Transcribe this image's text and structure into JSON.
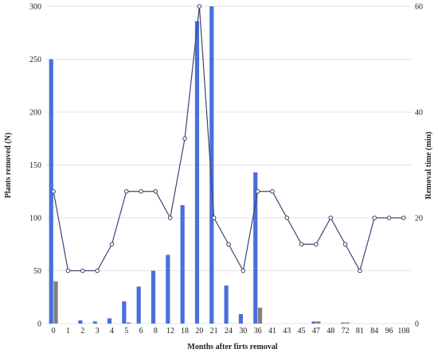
{
  "chart_data": {
    "type": "bar",
    "title": "",
    "xlabel": "Months after firts removal",
    "ylabel": "Plants removed (N)",
    "y2label": "Removal time (min)",
    "ylim": [
      0,
      300
    ],
    "y2lim": [
      0,
      60
    ],
    "yticks": [
      0,
      50,
      100,
      150,
      200,
      250,
      300
    ],
    "y2ticks": [
      0,
      20,
      40,
      60
    ],
    "grid": true,
    "legend": "none",
    "categories": [
      "0",
      "1",
      "2",
      "3",
      "4",
      "5",
      "6",
      "8",
      "12",
      "18",
      "20",
      "21",
      "24",
      "30",
      "36",
      "41",
      "43",
      "45",
      "47",
      "48",
      "72",
      "81",
      "84",
      "96",
      "108"
    ],
    "series": [
      {
        "kind": "bar",
        "axis": "left",
        "color": "#4a6fdc",
        "values": [
          250,
          0,
          3,
          2,
          5,
          21,
          35,
          50,
          65,
          112,
          286,
          300,
          36,
          9,
          143,
          0,
          0,
          0,
          2,
          0,
          1,
          0,
          0,
          0,
          0
        ]
      },
      {
        "kind": "bar",
        "axis": "left",
        "color": "#808080",
        "values": [
          40,
          0,
          0,
          0,
          0,
          1,
          0,
          0,
          0,
          0,
          0,
          0,
          0,
          0,
          15,
          0,
          0,
          0,
          2,
          0,
          1,
          0,
          0,
          0,
          0
        ]
      },
      {
        "kind": "line",
        "axis": "right",
        "color": "#3d4470",
        "values": [
          25,
          10,
          10,
          10,
          15,
          25,
          25,
          25,
          20,
          35,
          60,
          20,
          15,
          10,
          25,
          25,
          20,
          15,
          15,
          20,
          15,
          10,
          20,
          20,
          20
        ]
      }
    ]
  }
}
